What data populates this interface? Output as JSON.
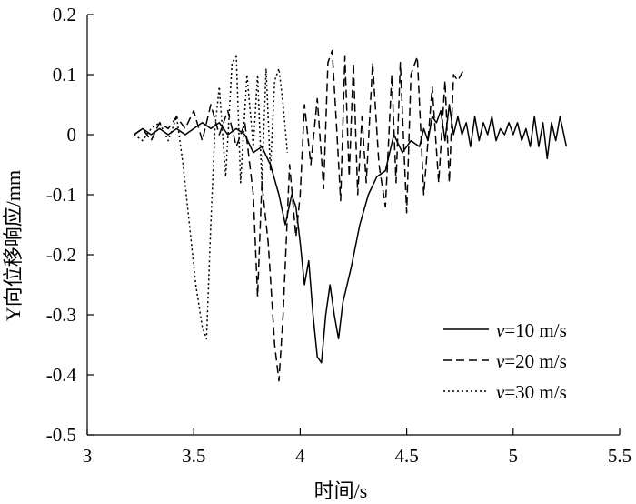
{
  "chart_data": {
    "type": "line",
    "xlabel": "时间/s",
    "ylabel": "Y向位移响应/mm",
    "xlim": [
      3,
      5.5
    ],
    "ylim": [
      -0.5,
      0.2
    ],
    "xticks": [
      "3",
      "3.5",
      "4",
      "4.5",
      "5",
      "5.5"
    ],
    "yticks": [
      "0.2",
      "0.1",
      "0",
      "-0.1",
      "-0.2",
      "-0.3",
      "-0.4",
      "-0.5"
    ],
    "grid": false,
    "legend_position": "bottom-right",
    "series": [
      {
        "name": "v=10 m/s",
        "line_style": "solid",
        "x": [
          3.22,
          3.26,
          3.3,
          3.34,
          3.38,
          3.42,
          3.46,
          3.5,
          3.54,
          3.58,
          3.62,
          3.66,
          3.7,
          3.74,
          3.78,
          3.82,
          3.86,
          3.9,
          3.93,
          3.96,
          3.98,
          4.0,
          4.02,
          4.04,
          4.06,
          4.08,
          4.1,
          4.12,
          4.14,
          4.16,
          4.18,
          4.2,
          4.24,
          4.28,
          4.32,
          4.36,
          4.4,
          4.44,
          4.48,
          4.52,
          4.56,
          4.58,
          4.6,
          4.62,
          4.64,
          4.66,
          4.68,
          4.7,
          4.72,
          4.74,
          4.76,
          4.78,
          4.8,
          4.82,
          4.84,
          4.86,
          4.88,
          4.9,
          4.92,
          4.94,
          4.96,
          4.98,
          5.0,
          5.02,
          5.04,
          5.06,
          5.08,
          5.1,
          5.12,
          5.14,
          5.16,
          5.18,
          5.2,
          5.22,
          5.25
        ],
        "y": [
          0.0,
          0.01,
          0.0,
          0.01,
          0.0,
          0.01,
          0.0,
          0.01,
          0.02,
          0.01,
          0.02,
          0.0,
          0.01,
          0.0,
          -0.03,
          -0.02,
          -0.05,
          -0.1,
          -0.15,
          -0.1,
          -0.12,
          -0.18,
          -0.25,
          -0.21,
          -0.3,
          -0.37,
          -0.38,
          -0.3,
          -0.25,
          -0.3,
          -0.34,
          -0.28,
          -0.22,
          -0.15,
          -0.1,
          -0.07,
          -0.06,
          0.0,
          -0.03,
          -0.01,
          -0.02,
          0.01,
          -0.01,
          0.03,
          0.02,
          0.04,
          -0.01,
          0.05,
          0.0,
          0.03,
          0.0,
          0.02,
          -0.02,
          0.03,
          -0.01,
          0.02,
          0.0,
          0.03,
          -0.01,
          0.01,
          0.0,
          0.02,
          0.0,
          0.02,
          -0.01,
          0.01,
          -0.02,
          0.03,
          -0.02,
          0.02,
          -0.04,
          0.02,
          -0.01,
          0.03,
          -0.02
        ]
      },
      {
        "name": "v=20 m/s",
        "line_style": "dashed",
        "x": [
          3.22,
          3.26,
          3.3,
          3.34,
          3.38,
          3.42,
          3.46,
          3.5,
          3.54,
          3.58,
          3.62,
          3.66,
          3.7,
          3.74,
          3.78,
          3.8,
          3.82,
          3.85,
          3.88,
          3.9,
          3.92,
          3.95,
          3.98,
          4.0,
          4.02,
          4.05,
          4.08,
          4.11,
          4.13,
          4.15,
          4.17,
          4.19,
          4.21,
          4.23,
          4.25,
          4.27,
          4.29,
          4.31,
          4.34,
          4.37,
          4.4,
          4.43,
          4.45,
          4.47,
          4.5,
          4.52,
          4.55,
          4.58,
          4.62,
          4.65,
          4.68,
          4.7,
          4.72,
          4.74,
          4.77
        ],
        "y": [
          0.0,
          0.01,
          -0.01,
          0.02,
          0.01,
          0.03,
          0.01,
          0.04,
          -0.01,
          0.05,
          0.0,
          0.04,
          -0.02,
          0.02,
          -0.1,
          -0.27,
          -0.08,
          -0.18,
          -0.35,
          -0.41,
          -0.3,
          -0.05,
          -0.17,
          -0.1,
          0.05,
          -0.05,
          0.06,
          -0.09,
          0.12,
          0.14,
          0.02,
          -0.11,
          0.13,
          -0.07,
          0.12,
          -0.1,
          0.03,
          -0.08,
          0.12,
          -0.05,
          -0.12,
          0.1,
          -0.08,
          0.12,
          -0.13,
          0.1,
          0.13,
          -0.1,
          0.08,
          -0.08,
          0.09,
          -0.08,
          0.1,
          0.09,
          0.11
        ]
      },
      {
        "name": "v=30 m/s",
        "line_style": "dotted",
        "x": [
          3.22,
          3.26,
          3.3,
          3.34,
          3.38,
          3.42,
          3.45,
          3.48,
          3.51,
          3.54,
          3.56,
          3.58,
          3.6,
          3.62,
          3.65,
          3.68,
          3.7,
          3.72,
          3.75,
          3.78,
          3.8,
          3.82,
          3.84,
          3.86,
          3.88,
          3.9,
          3.92,
          3.94
        ],
        "y": [
          0.0,
          -0.01,
          0.01,
          0.02,
          -0.01,
          0.03,
          -0.05,
          -0.15,
          -0.25,
          -0.32,
          -0.34,
          -0.15,
          0.01,
          0.08,
          -0.07,
          0.12,
          0.13,
          -0.08,
          0.1,
          -0.02,
          0.1,
          -0.08,
          0.11,
          -0.06,
          0.09,
          0.11,
          0.05,
          -0.03
        ]
      }
    ]
  }
}
